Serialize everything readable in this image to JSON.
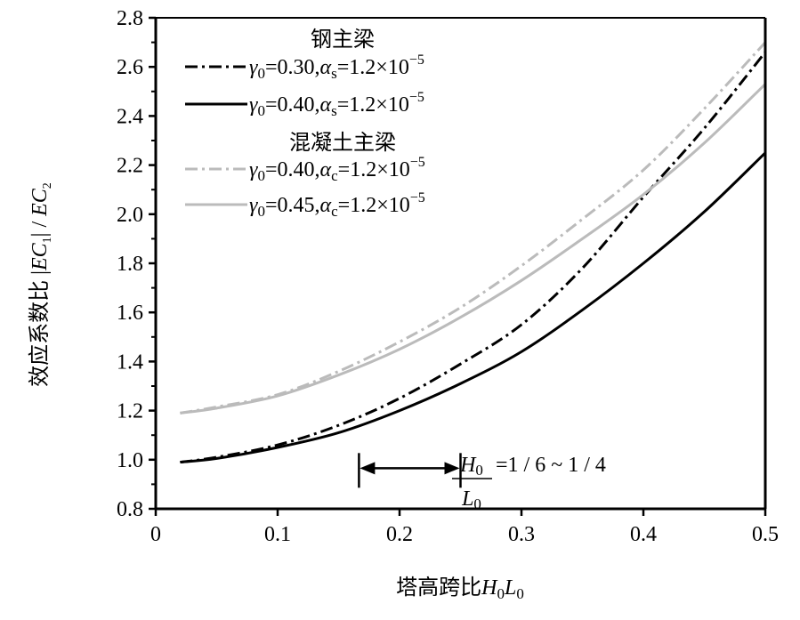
{
  "chart_data": {
    "type": "line",
    "xlabel": "塔高跨比H0L0",
    "ylabel": "效应系数比 |EC1| / EC2",
    "xlim": [
      0,
      0.5
    ],
    "ylim": [
      0.8,
      2.8
    ],
    "xticks": [
      "0",
      "0.1",
      "0.2",
      "0.3",
      "0.4",
      "0.5"
    ],
    "yticks": [
      "0.8",
      "1.0",
      "1.2",
      "1.4",
      "1.6",
      "1.8",
      "2.0",
      "2.2",
      "2.4",
      "2.6",
      "2.8"
    ],
    "x": [
      0.02,
      0.05,
      0.1,
      0.15,
      0.2,
      0.25,
      0.3,
      0.35,
      0.4,
      0.45,
      0.5
    ],
    "legend_groups": [
      "钢主梁",
      "混凝土主梁"
    ],
    "series": [
      {
        "name": "γ0=0.30,αs=1.2×10−5",
        "group": 0,
        "color": "#000000",
        "dash": "dashdot",
        "values": [
          0.99,
          1.01,
          1.06,
          1.14,
          1.25,
          1.39,
          1.55,
          1.78,
          2.07,
          2.35,
          2.66
        ]
      },
      {
        "name": "γ0=0.40,αs=1.2×10−5",
        "group": 0,
        "color": "#000000",
        "dash": "solid",
        "values": [
          0.99,
          1.005,
          1.05,
          1.11,
          1.2,
          1.31,
          1.44,
          1.61,
          1.8,
          2.01,
          2.25
        ]
      },
      {
        "name": "γ0=0.40,αc=1.2×10−5",
        "group": 1,
        "color": "#bbbbbb",
        "dash": "dashdot",
        "values": [
          1.19,
          1.215,
          1.265,
          1.36,
          1.48,
          1.62,
          1.79,
          1.98,
          2.18,
          2.43,
          2.7
        ]
      },
      {
        "name": "γ0=0.45,αc=1.2×10−5",
        "group": 1,
        "color": "#bbbbbb",
        "dash": "solid",
        "values": [
          1.19,
          1.21,
          1.26,
          1.345,
          1.45,
          1.58,
          1.73,
          1.9,
          2.08,
          2.29,
          2.53
        ]
      }
    ],
    "legend_labels": [
      {
        "gamma": "γ",
        "gsub": "0",
        "val1": "=0.30,",
        "alpha": "α",
        "asub": "s",
        "val2": "=1.2×10",
        "exp": "−5"
      },
      {
        "gamma": "γ",
        "gsub": "0",
        "val1": "=0.40,",
        "alpha": "α",
        "asub": "s",
        "val2": "=1.2×10",
        "exp": "−5"
      },
      {
        "gamma": "γ",
        "gsub": "0",
        "val1": "=0.40,",
        "alpha": "α",
        "asub": "c",
        "val2": "=1.2×10",
        "exp": "−5"
      },
      {
        "gamma": "γ",
        "gsub": "0",
        "val1": "=0.45,",
        "alpha": "α",
        "asub": "c",
        "val2": "=1.2×10",
        "exp": "−5"
      }
    ],
    "legend_position": "top-left",
    "annotation": {
      "range": [
        0.1667,
        0.25
      ],
      "y": 0.98,
      "num": "H",
      "num_sub": "0",
      "den": "L",
      "den_sub": "0",
      "text": "=1 / 6 ~ 1 / 4"
    },
    "ylabel_parts": {
      "cn": "效应系数比",
      "ec1": "EC",
      "ec1_sub": "1",
      "sep": "/",
      "ec2": "EC",
      "ec2_sub": "2"
    },
    "xlabel_parts": {
      "cn": "塔高跨比",
      "h": "H",
      "h_sub": "0",
      "l": "L",
      "l_sub": "0"
    }
  }
}
